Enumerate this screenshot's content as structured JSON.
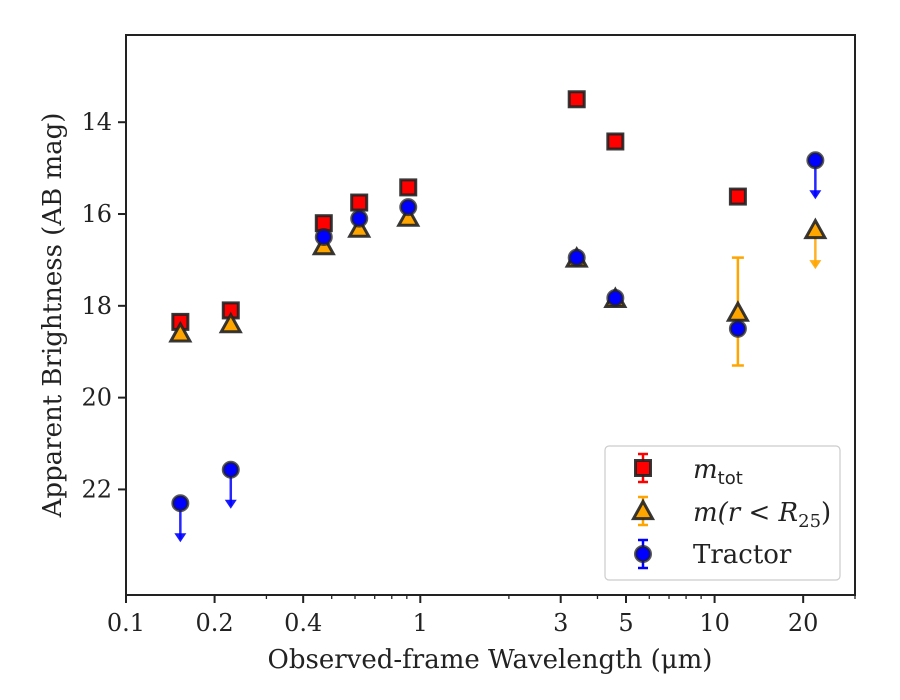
{
  "chart_data": {
    "type": "scatter",
    "xlabel": "Observed-frame Wavelength (μm)",
    "ylabel": "Apparent Brightness (AB mag)",
    "xscale": "log",
    "xlim": [
      0.1,
      30
    ],
    "ylim": [
      24.3,
      12.1
    ],
    "y_inverted": true,
    "x_ticks": [
      0.1,
      0.2,
      0.4,
      1,
      3,
      5,
      10,
      20
    ],
    "x_tick_labels": [
      "0.1",
      "0.2",
      "0.4",
      "1",
      "3",
      "5",
      "10",
      "20"
    ],
    "y_ticks": [
      14,
      16,
      18,
      20,
      22
    ],
    "y_tick_labels": [
      "14",
      "16",
      "18",
      "20",
      "22"
    ],
    "grid": false,
    "legend_position": "lower-right",
    "series": [
      {
        "name": "m_tot",
        "marker": "square",
        "color": "#ff0000",
        "edge_color": "#222222",
        "points": [
          {
            "x": 0.153,
            "y": 18.35
          },
          {
            "x": 0.227,
            "y": 18.1
          },
          {
            "x": 0.47,
            "y": 16.2
          },
          {
            "x": 0.62,
            "y": 15.75
          },
          {
            "x": 0.91,
            "y": 15.42
          },
          {
            "x": 3.4,
            "y": 13.5
          },
          {
            "x": 4.6,
            "y": 14.42
          },
          {
            "x": 12.0,
            "y": 15.62
          }
        ]
      },
      {
        "name": "m(r < R25)",
        "marker": "triangle",
        "color": "#ffa500",
        "edge_color": "#222222",
        "points": [
          {
            "x": 0.153,
            "y": 18.6
          },
          {
            "x": 0.227,
            "y": 18.4
          },
          {
            "x": 0.47,
            "y": 16.7
          },
          {
            "x": 0.62,
            "y": 16.32
          },
          {
            "x": 0.91,
            "y": 16.08
          },
          {
            "x": 3.4,
            "y": 16.97
          },
          {
            "x": 4.6,
            "y": 17.85
          },
          {
            "x": 12.0,
            "y": 18.15,
            "yerr_low": 16.95,
            "yerr_high": 19.3
          },
          {
            "x": 22.0,
            "y": 16.35,
            "upper_limit": true
          }
        ]
      },
      {
        "name": "Tractor",
        "marker": "circle",
        "color": "#0000ff",
        "edge_color": "#222222",
        "points": [
          {
            "x": 0.153,
            "y": 22.3,
            "upper_limit": true
          },
          {
            "x": 0.227,
            "y": 21.57,
            "upper_limit": true
          },
          {
            "x": 0.47,
            "y": 16.5
          },
          {
            "x": 0.62,
            "y": 16.1
          },
          {
            "x": 0.91,
            "y": 15.85
          },
          {
            "x": 3.4,
            "y": 16.95
          },
          {
            "x": 4.6,
            "y": 17.83
          },
          {
            "x": 12.0,
            "y": 18.5
          },
          {
            "x": 22.0,
            "y": 14.83,
            "upper_limit": true
          }
        ]
      }
    ]
  },
  "legend": {
    "items": [
      {
        "base": "m",
        "sub": "tot",
        "suffix": "",
        "label": "m_tot"
      },
      {
        "base": "m(r < R",
        "sub": "25",
        "suffix": ")",
        "label": "m(r < R25)"
      },
      {
        "base": "Tractor",
        "sub": "",
        "suffix": "",
        "label": "Tractor"
      }
    ]
  }
}
